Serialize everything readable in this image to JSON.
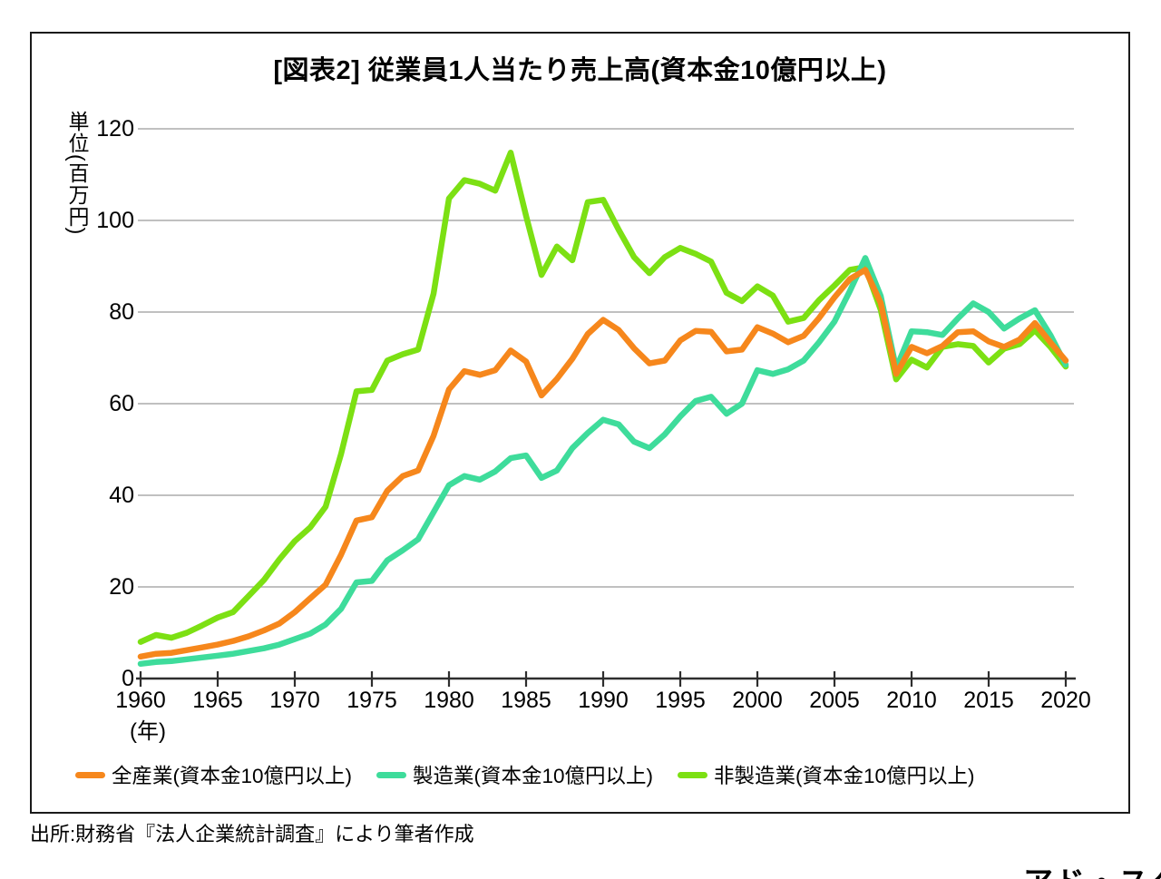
{
  "figure": {
    "title": "[図表2] 従業員1人当たり売上高(資本金10億円以上)",
    "y_axis_unit": "単位(百万円)",
    "x_axis_note": "(年)",
    "source": "出所:財務省『法人企業統計調査』により筆者作成",
    "watermark": "アド・スタディーズ"
  },
  "chart_data": {
    "type": "line",
    "title": "[図表2] 従業員1人当たり売上高(資本金10億円以上)",
    "xlabel": "年",
    "ylabel": "単位(百万円)",
    "xlim": [
      1960,
      2020
    ],
    "ylim": [
      0,
      120
    ],
    "grid": true,
    "legend_position": "bottom",
    "x_tick_years": [
      1960,
      1965,
      1970,
      1975,
      1980,
      1985,
      1990,
      1995,
      2000,
      2005,
      2010,
      2015,
      2020
    ],
    "y_ticks": [
      0,
      20,
      40,
      60,
      80,
      100,
      120
    ],
    "x": [
      1960,
      1961,
      1962,
      1963,
      1964,
      1965,
      1966,
      1967,
      1968,
      1969,
      1970,
      1971,
      1972,
      1973,
      1974,
      1975,
      1976,
      1977,
      1978,
      1979,
      1980,
      1981,
      1982,
      1983,
      1984,
      1985,
      1986,
      1987,
      1988,
      1989,
      1990,
      1991,
      1992,
      1993,
      1994,
      1995,
      1996,
      1997,
      1998,
      1999,
      2000,
      2001,
      2002,
      2003,
      2004,
      2005,
      2006,
      2007,
      2008,
      2009,
      2010,
      2011,
      2012,
      2013,
      2014,
      2015,
      2016,
      2017,
      2018,
      2019,
      2020
    ],
    "series": [
      {
        "name": "全産業(資本金10億円以上)",
        "color": "#f6871c",
        "values": [
          4.8,
          5.4,
          5.6,
          6.2,
          6.8,
          7.4,
          8.2,
          9.2,
          10.5,
          12,
          14.5,
          17.5,
          20.5,
          27,
          34.5,
          35.2,
          41,
          44.2,
          45.4,
          53,
          63.1,
          67.1,
          66.3,
          67.3,
          71.6,
          69.2,
          61.8,
          65.4,
          69.8,
          75.2,
          78.3,
          76.1,
          72.1,
          68.8,
          69.4,
          73.8,
          75.9,
          75.7,
          71.4,
          71.8,
          76.7,
          75.3,
          73.4,
          74.8,
          78.7,
          83.2,
          87.2,
          89.2,
          82,
          66.5,
          72.4,
          71,
          72.6,
          75.6,
          75.8,
          73.6,
          72.4,
          74,
          77.6,
          73.4,
          69.4
        ]
      },
      {
        "name": "製造業(資本金10億円以上)",
        "color": "#3edc9b",
        "values": [
          3.2,
          3.6,
          3.8,
          4.2,
          4.6,
          5,
          5.4,
          6,
          6.6,
          7.4,
          8.6,
          9.8,
          11.8,
          15.2,
          21,
          21.3,
          25.8,
          28,
          30.4,
          36.3,
          42.2,
          44.2,
          43.4,
          45.2,
          48.1,
          48.7,
          43.8,
          45.4,
          50.3,
          53.6,
          56.5,
          55.5,
          51.7,
          50.3,
          53.3,
          57.2,
          60.6,
          61.5,
          57.8,
          60,
          67.3,
          66.5,
          67.5,
          69.4,
          73.4,
          77.9,
          84.6,
          91.8,
          83.5,
          67.7,
          75.8,
          75.6,
          75,
          78.6,
          81.9,
          80,
          76.4,
          78.6,
          80.4,
          75,
          68.5
        ]
      },
      {
        "name": "非製造業(資本金10億円以上)",
        "color": "#7ce013",
        "values": [
          8,
          9.5,
          8.9,
          10,
          11.6,
          13.3,
          14.5,
          18,
          21.5,
          26,
          30,
          33,
          37.5,
          49,
          62.7,
          63,
          69.4,
          70.8,
          71.8,
          84,
          104.8,
          108.8,
          108,
          106.5,
          114.8,
          101,
          88.1,
          94.3,
          91.3,
          104,
          104.5,
          98,
          92,
          88.5,
          92,
          94,
          92.7,
          91,
          84.2,
          82.4,
          85.6,
          83.6,
          77.9,
          78.7,
          82.6,
          85.8,
          89.2,
          89.8,
          80.5,
          65.3,
          69.6,
          67.9,
          72.4,
          73,
          72.6,
          69,
          72,
          73,
          76,
          72.4,
          68.1
        ]
      }
    ],
    "style": {
      "grid_color": "#ababab",
      "axis_color": "#2e2e2e",
      "line_width": 6.5
    }
  }
}
